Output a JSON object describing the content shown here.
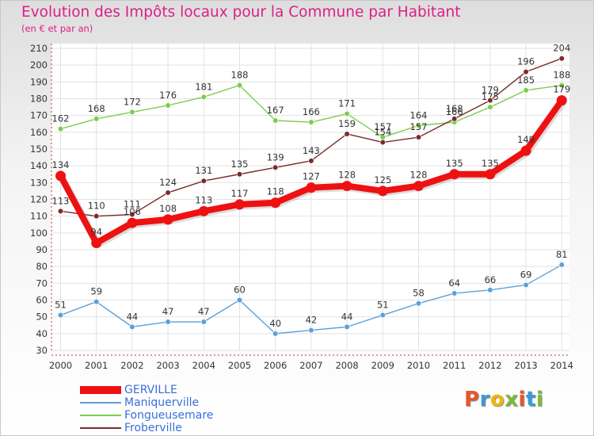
{
  "title": "Evolution des Impôts locaux pour la Commune par Habitant",
  "subtitle": "(en € et par an)",
  "brand": "Proxiti",
  "chart_data": {
    "type": "line",
    "x": [
      "2000",
      "2001",
      "2002",
      "2003",
      "2004",
      "2005",
      "2006",
      "2007",
      "2008",
      "2009",
      "2010",
      "2011",
      "2012",
      "2013",
      "2014"
    ],
    "ylim": [
      30,
      210
    ],
    "yticks": [
      30,
      40,
      50,
      60,
      70,
      80,
      90,
      100,
      110,
      120,
      130,
      140,
      150,
      160,
      170,
      180,
      190,
      200,
      210
    ],
    "grid": true,
    "legend_position": "bottom-left",
    "series": [
      {
        "name": "Fongueusemare",
        "color": "#7ccd4e",
        "values": [
          162,
          168,
          172,
          176,
          181,
          188,
          167,
          166,
          171,
          157,
          164,
          166,
          175,
          185,
          188
        ],
        "labels": [
          "162",
          "168",
          "172",
          "176",
          "181",
          "188",
          "167",
          "166",
          "171",
          "157",
          "164",
          "166",
          "175",
          "185",
          "188"
        ]
      },
      {
        "name": "Froberville",
        "color": "#7a2b2b",
        "values": [
          113,
          110,
          111,
          124,
          131,
          135,
          139,
          143,
          159,
          154,
          157,
          168,
          179,
          196,
          204
        ],
        "labels": [
          "113",
          "110",
          "111",
          "124",
          "131",
          "135",
          "139",
          "143",
          "159",
          "154",
          "157",
          "168",
          "179",
          "196",
          "204"
        ]
      },
      {
        "name": "Maniquerville",
        "color": "#5ca0d8",
        "values": [
          51,
          59,
          44,
          47,
          47,
          60,
          40,
          42,
          44,
          51,
          58,
          64,
          66,
          69,
          81
        ],
        "labels": [
          "51",
          "59",
          "44",
          "47",
          "47",
          "60",
          "40",
          "42",
          "44",
          "51",
          "58",
          "64",
          "66",
          "69",
          "81"
        ]
      },
      {
        "name": "GERVILLE",
        "color": "#ee1111",
        "values": [
          134,
          94,
          106,
          108,
          113,
          117,
          118,
          127,
          128,
          125,
          128,
          135,
          135,
          149,
          179
        ],
        "labels": [
          "134",
          "94",
          "106",
          "108",
          "113",
          "117",
          "118",
          "127",
          "128",
          "125",
          "128",
          "135",
          "135",
          "149",
          "179"
        ]
      }
    ],
    "legend": [
      "GERVILLE",
      "Maniquerville",
      "Fongueusemare",
      "Froberville"
    ]
  }
}
